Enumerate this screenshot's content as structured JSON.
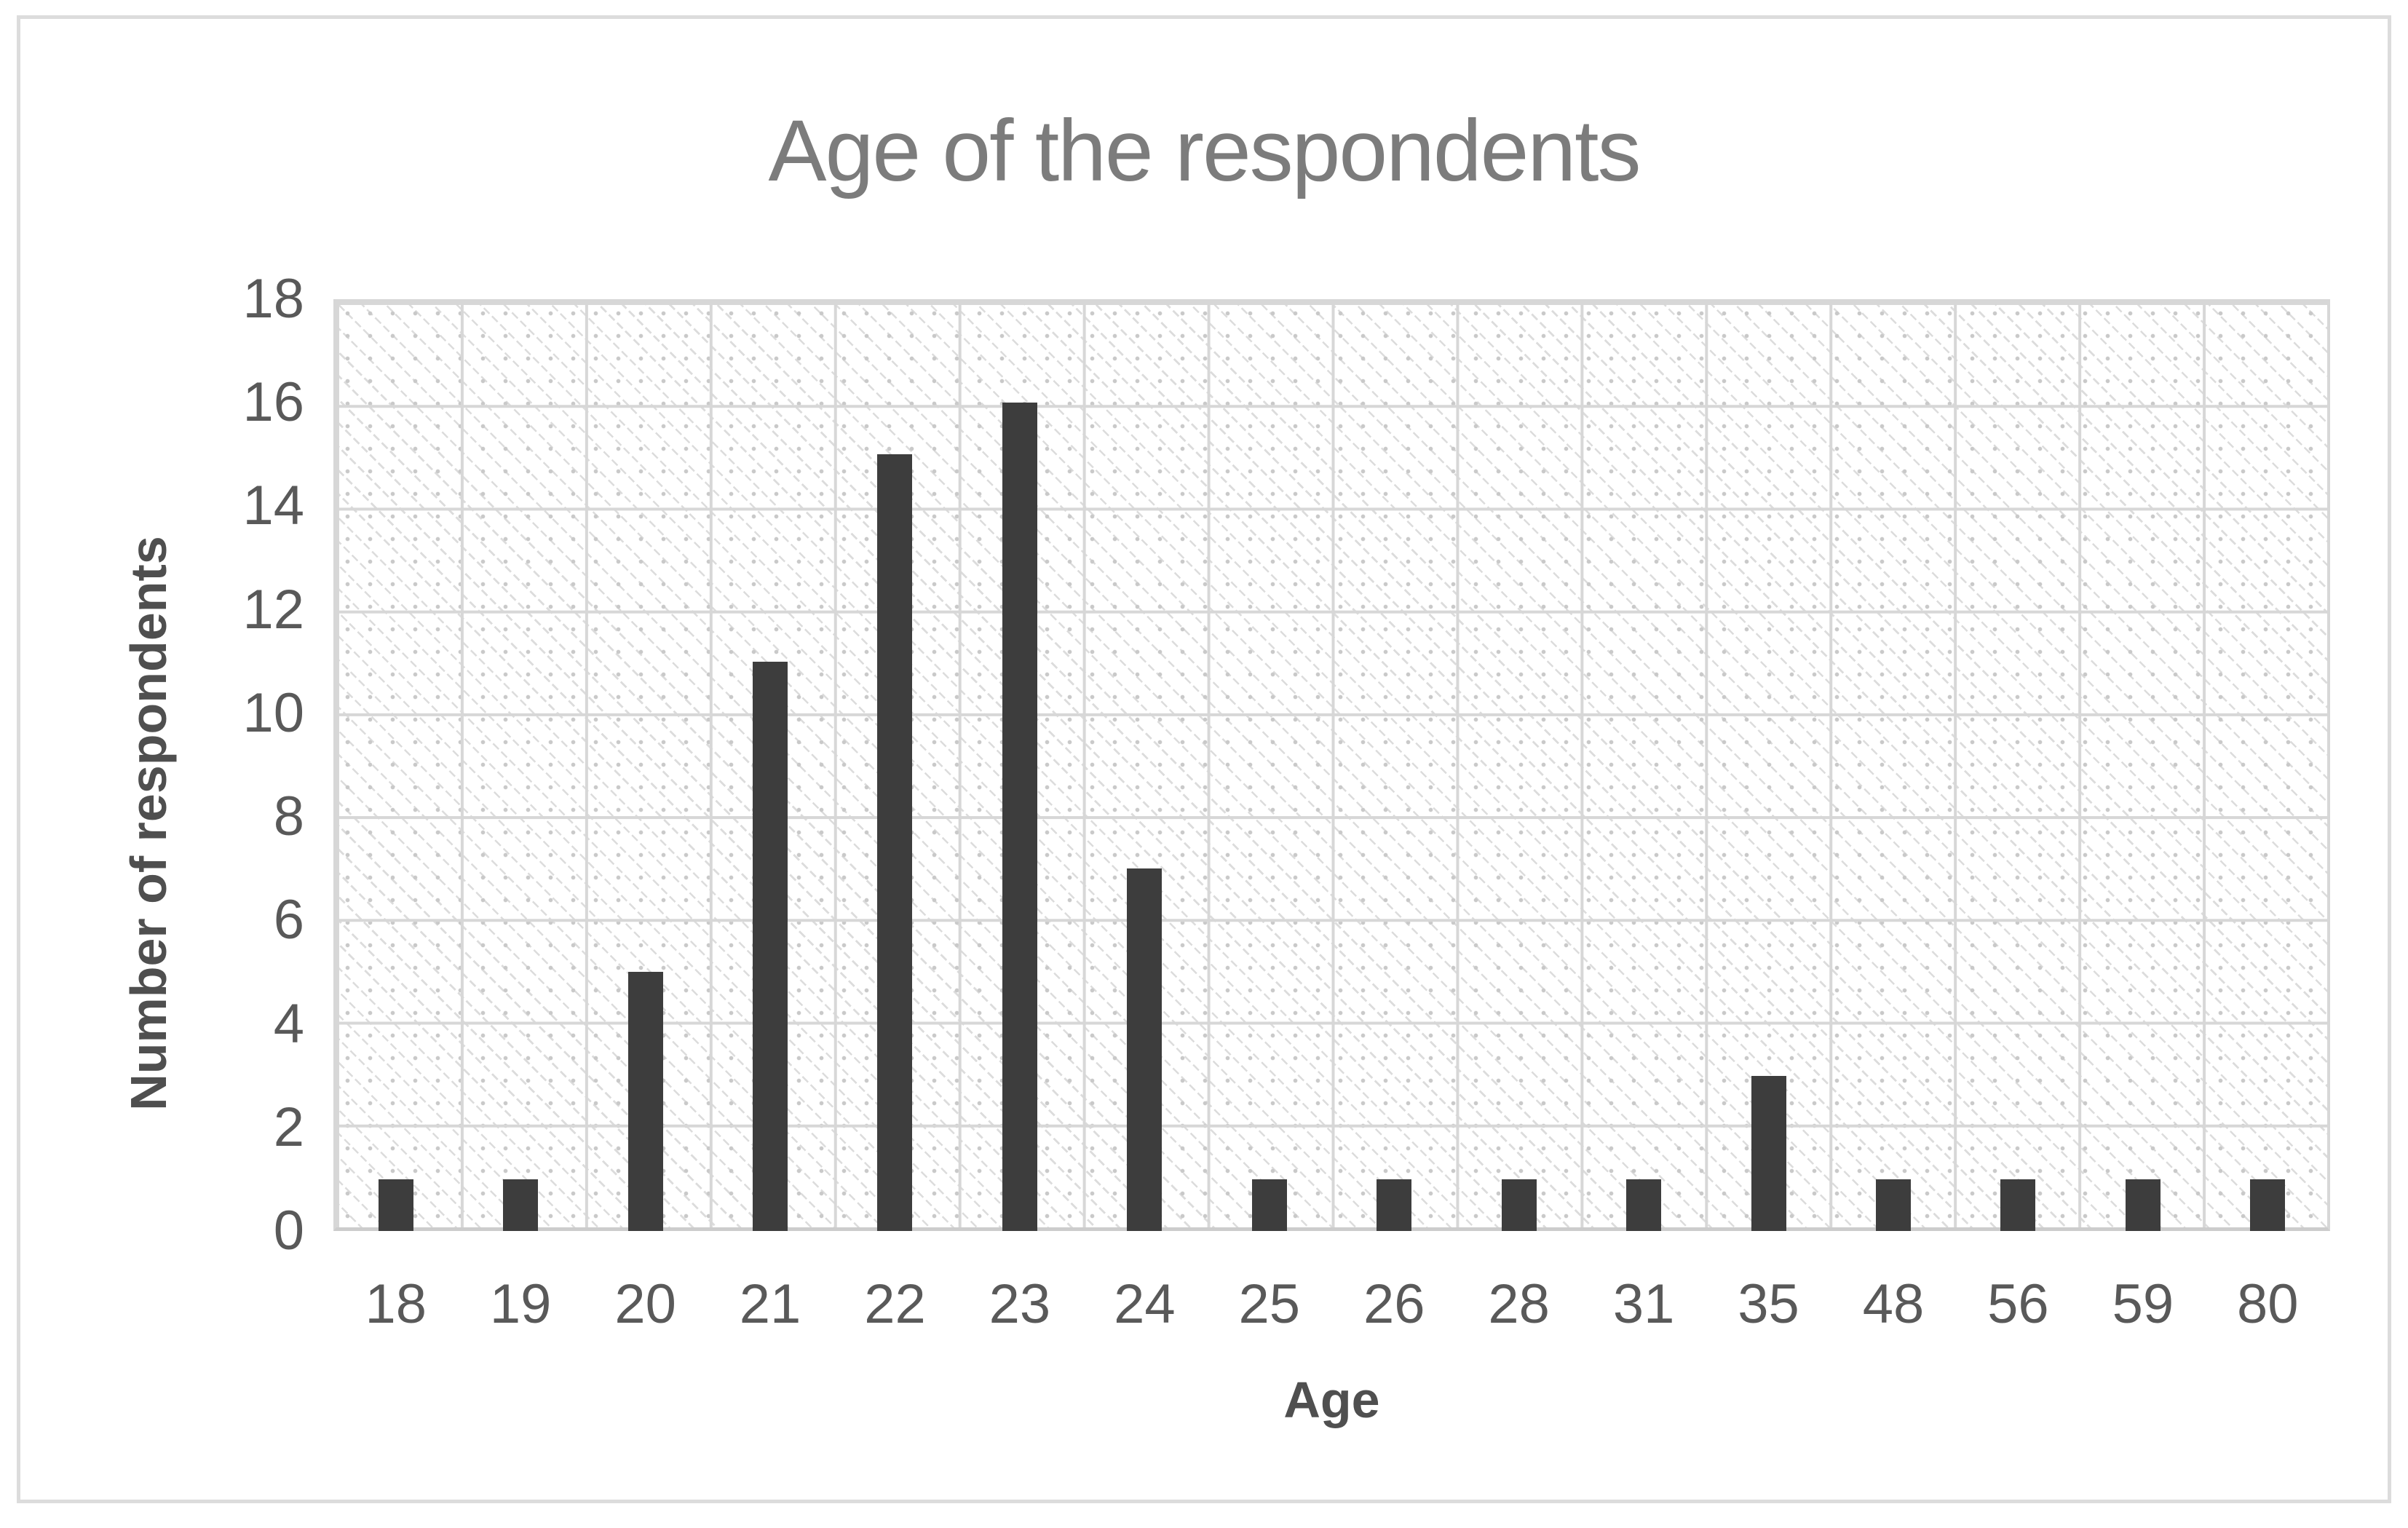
{
  "chart_data": {
    "type": "bar",
    "title": "Age of the respondents",
    "xlabel": "Age",
    "ylabel": "Number of respondents",
    "categories": [
      "18",
      "19",
      "20",
      "21",
      "22",
      "23",
      "24",
      "25",
      "26",
      "28",
      "31",
      "35",
      "48",
      "56",
      "59",
      "80"
    ],
    "values": [
      1,
      1,
      5,
      11,
      15,
      16,
      7,
      1,
      1,
      1,
      1,
      3,
      1,
      1,
      1,
      1
    ],
    "ylim": [
      0,
      18
    ],
    "yticks": [
      0,
      2,
      4,
      6,
      8,
      10,
      12,
      14,
      16,
      18
    ],
    "grid": "both-major",
    "legend": "none",
    "plot_area_pattern": "light-downward-diagonal-hatch",
    "colors": {
      "bar": "#3d3d3d",
      "gridline": "#d7d7d7",
      "title_text": "#7c7c7c",
      "tick_text": "#595959",
      "axis_title_text": "#4f4f4f",
      "frame_border": "#dcdcdc",
      "background": "#ffffff"
    }
  }
}
